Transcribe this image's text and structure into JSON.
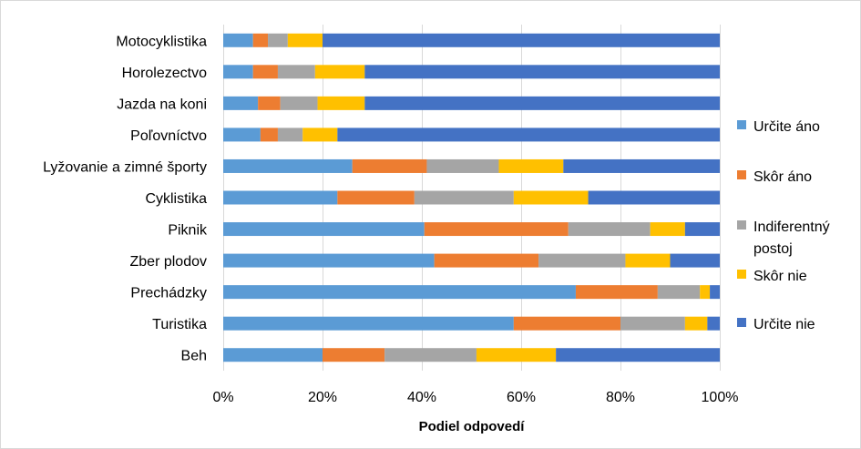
{
  "chart_data": {
    "type": "bar",
    "orientation": "horizontal",
    "stacked": true,
    "percent_stacked": true,
    "categories": [
      "Motocyklistika",
      "Horolezectvo",
      "Jazda na koni",
      "Poľovníctvo",
      "Lyžovanie a zimné športy",
      "Cyklistika",
      "Piknik",
      "Zber plodov",
      "Prechádzky",
      "Turistika",
      "Beh"
    ],
    "series": [
      {
        "name": "Určite áno",
        "color": "#5B9BD5",
        "values": [
          6,
          6,
          7,
          7.5,
          26,
          23,
          40.5,
          42.5,
          71,
          58.5,
          20
        ]
      },
      {
        "name": "Skôr áno",
        "color": "#ED7D31",
        "values": [
          3,
          5,
          4.5,
          3.5,
          15,
          15.5,
          29,
          21,
          16.5,
          21.5,
          12.5
        ]
      },
      {
        "name": "Indiferentný postoj",
        "color": "#A5A5A5",
        "values": [
          4,
          7.5,
          7.5,
          5,
          14.5,
          20,
          16.5,
          17.5,
          8.5,
          13,
          18.5
        ]
      },
      {
        "name": "Skôr nie",
        "color": "#FFC000",
        "values": [
          7,
          10,
          9.5,
          7,
          13,
          15,
          7,
          9,
          2,
          4.5,
          16
        ]
      },
      {
        "name": "Určite nie",
        "color": "#4472C4",
        "values": [
          80,
          71.5,
          71.5,
          77,
          31.5,
          26.5,
          7,
          10,
          2,
          2.5,
          33
        ]
      }
    ],
    "xlabel": "Podiel odpovedí",
    "ylabel": "",
    "xlim": [
      0,
      100
    ],
    "x_ticks": [
      "0%",
      "20%",
      "40%",
      "60%",
      "80%",
      "100%"
    ],
    "x_tick_values": [
      0,
      20,
      40,
      60,
      80,
      100
    ],
    "grid": true,
    "legend_position": "right"
  }
}
